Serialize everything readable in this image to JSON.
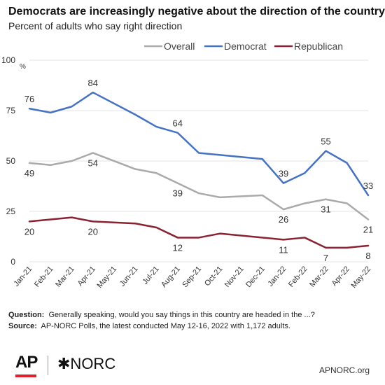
{
  "header": {
    "title": "Democrats are increasingly negative about the direction of the country",
    "subtitle": "Percent of adults who say right direction"
  },
  "chart_data": {
    "type": "line",
    "title": "Democrats are increasingly negative about the direction of the country",
    "subtitle": "Percent of adults who say right direction",
    "ylabel": "%",
    "ylim": [
      0,
      100
    ],
    "yticks": [
      0,
      25,
      50,
      75,
      100
    ],
    "grid": true,
    "legend_position": "top",
    "x": [
      "Jan-21",
      "Feb-21",
      "Mar-21",
      "Apr-21",
      "May-21",
      "Jun-21",
      "Jul-21",
      "Aug-21",
      "Sep-21",
      "Oct-21",
      "Nov-21",
      "Dec-21",
      "Jan-22",
      "Feb-22",
      "Mar-22",
      "Apr-22",
      "May-22"
    ],
    "series": [
      {
        "name": "Overall",
        "color": "#aaaaaa",
        "points": [
          {
            "x": "Jan-21",
            "y": 49
          },
          {
            "x": "Feb-21",
            "y": 48
          },
          {
            "x": "Mar-21",
            "y": 50
          },
          {
            "x": "Apr-21",
            "y": 54
          },
          {
            "x": "Jun-21",
            "y": 46
          },
          {
            "x": "Jul-21",
            "y": 44
          },
          {
            "x": "Aug-21",
            "y": 39
          },
          {
            "x": "Sep-21",
            "y": 34
          },
          {
            "x": "Oct-21",
            "y": 32
          },
          {
            "x": "Dec-21",
            "y": 33
          },
          {
            "x": "Jan-22",
            "y": 26
          },
          {
            "x": "Feb-22",
            "y": 29
          },
          {
            "x": "Mar-22",
            "y": 31
          },
          {
            "x": "Apr-22",
            "y": 29
          },
          {
            "x": "May-22",
            "y": 21
          }
        ],
        "labels": [
          {
            "x": "Jan-21",
            "text": "49",
            "pos": "below"
          },
          {
            "x": "Apr-21",
            "text": "54",
            "pos": "below"
          },
          {
            "x": "Aug-21",
            "text": "39",
            "pos": "below"
          },
          {
            "x": "Jan-22",
            "text": "26",
            "pos": "below"
          },
          {
            "x": "Mar-22",
            "text": "31",
            "pos": "below"
          },
          {
            "x": "May-22",
            "text": "21",
            "pos": "below"
          }
        ]
      },
      {
        "name": "Democrat",
        "color": "#4472c4",
        "points": [
          {
            "x": "Jan-21",
            "y": 76
          },
          {
            "x": "Feb-21",
            "y": 74
          },
          {
            "x": "Mar-21",
            "y": 77
          },
          {
            "x": "Apr-21",
            "y": 84
          },
          {
            "x": "Jun-21",
            "y": 73
          },
          {
            "x": "Jul-21",
            "y": 67
          },
          {
            "x": "Aug-21",
            "y": 64
          },
          {
            "x": "Sep-21",
            "y": 54
          },
          {
            "x": "Dec-21",
            "y": 51
          },
          {
            "x": "Jan-22",
            "y": 39
          },
          {
            "x": "Feb-22",
            "y": 44
          },
          {
            "x": "Mar-22",
            "y": 55
          },
          {
            "x": "Apr-22",
            "y": 49
          },
          {
            "x": "May-22",
            "y": 33
          }
        ],
        "labels": [
          {
            "x": "Jan-21",
            "text": "76",
            "pos": "above"
          },
          {
            "x": "Apr-21",
            "text": "84",
            "pos": "above"
          },
          {
            "x": "Aug-21",
            "text": "64",
            "pos": "above"
          },
          {
            "x": "Jan-22",
            "text": "39",
            "pos": "above"
          },
          {
            "x": "Mar-22",
            "text": "55",
            "pos": "above"
          },
          {
            "x": "May-22",
            "text": "33",
            "pos": "above"
          }
        ]
      },
      {
        "name": "Republican",
        "color": "#8b2232",
        "points": [
          {
            "x": "Jan-21",
            "y": 20
          },
          {
            "x": "Mar-21",
            "y": 22
          },
          {
            "x": "Apr-21",
            "y": 20
          },
          {
            "x": "Jun-21",
            "y": 19
          },
          {
            "x": "Jul-21",
            "y": 17
          },
          {
            "x": "Aug-21",
            "y": 12
          },
          {
            "x": "Sep-21",
            "y": 12
          },
          {
            "x": "Oct-21",
            "y": 14
          },
          {
            "x": "Jan-22",
            "y": 11
          },
          {
            "x": "Feb-22",
            "y": 12
          },
          {
            "x": "Mar-22",
            "y": 7
          },
          {
            "x": "Apr-22",
            "y": 7
          },
          {
            "x": "May-22",
            "y": 8
          }
        ],
        "labels": [
          {
            "x": "Jan-21",
            "text": "20",
            "pos": "below"
          },
          {
            "x": "Apr-21",
            "text": "20",
            "pos": "below"
          },
          {
            "x": "Aug-21",
            "text": "12",
            "pos": "below"
          },
          {
            "x": "Jan-22",
            "text": "11",
            "pos": "below"
          },
          {
            "x": "Mar-22",
            "text": "7",
            "pos": "below"
          },
          {
            "x": "May-22",
            "text": "8",
            "pos": "below"
          }
        ]
      }
    ]
  },
  "footnotes": {
    "question_label": "Question:",
    "question_text": "Generally speaking, would you say things in this country are headed in the ...?",
    "source_label": "Source:",
    "source_text": "AP-NORC Polls, the latest conducted May 12-16, 2022 with 1,172 adults."
  },
  "branding": {
    "ap_logo": "AP",
    "norc_logo": "✱NORC",
    "site": "APNORC.org",
    "ap_accent": "#e0202c"
  }
}
